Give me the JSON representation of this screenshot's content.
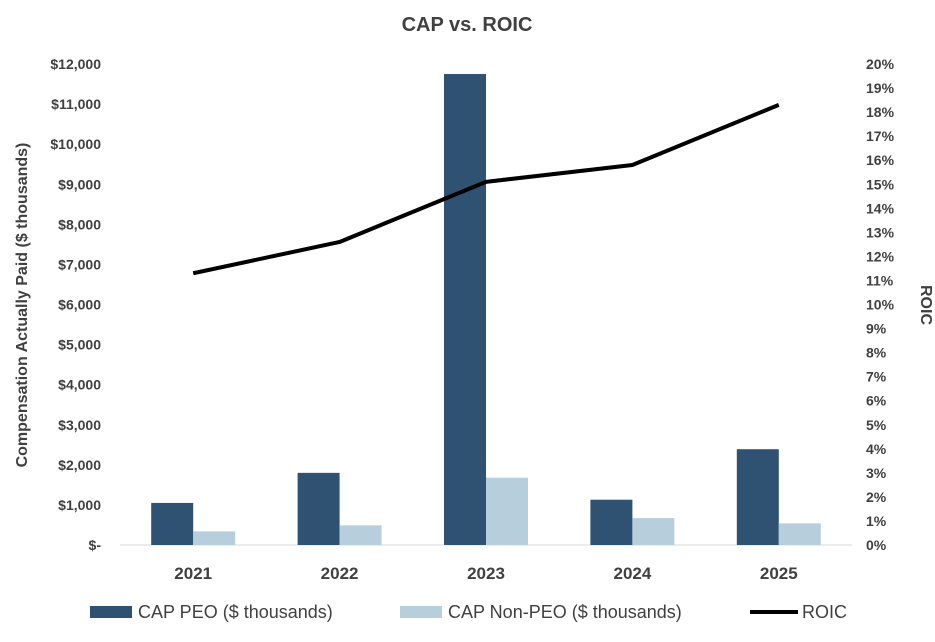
{
  "chart_data": {
    "type": "bar",
    "title": "CAP vs. ROIC",
    "categories": [
      "2021",
      "2022",
      "2023",
      "2024",
      "2025"
    ],
    "series": [
      {
        "name": "CAP PEO ($ thousands)",
        "type": "bar",
        "axis": "left",
        "color": "#2F5272",
        "values": [
          1050,
          1800,
          11750,
          1130,
          2390
        ]
      },
      {
        "name": "CAP Non-PEO ($ thousands)",
        "type": "bar",
        "axis": "left",
        "color": "#B7CFDC",
        "values": [
          340,
          490,
          1680,
          670,
          540
        ]
      },
      {
        "name": "ROIC",
        "type": "line",
        "axis": "right",
        "color": "#000000",
        "values": [
          11.3,
          12.6,
          15.1,
          15.8,
          18.3
        ]
      }
    ],
    "y_left": {
      "label": "Compensation Actually Paid ($ thousands)",
      "range": [
        0,
        12000
      ],
      "ticks": [
        0,
        1000,
        2000,
        3000,
        4000,
        5000,
        6000,
        7000,
        8000,
        9000,
        10000,
        11000,
        12000
      ],
      "tick_labels": [
        "$-",
        "$1,000",
        "$2,000",
        "$3,000",
        "$4,000",
        "$5,000",
        "$6,000",
        "$7,000",
        "$8,000",
        "$9,000",
        "$10,000",
        "$11,000",
        "$12,000"
      ]
    },
    "y_right": {
      "label": "ROIC",
      "range": [
        0,
        20
      ],
      "ticks": [
        0,
        1,
        2,
        3,
        4,
        5,
        6,
        7,
        8,
        9,
        10,
        11,
        12,
        13,
        14,
        15,
        16,
        17,
        18,
        19,
        20
      ],
      "tick_labels": [
        "0%",
        "1%",
        "2%",
        "3%",
        "4%",
        "5%",
        "6%",
        "7%",
        "8%",
        "9%",
        "10%",
        "11%",
        "12%",
        "13%",
        "14%",
        "15%",
        "16%",
        "17%",
        "18%",
        "19%",
        "20%"
      ]
    },
    "grid": false,
    "legend_position": "bottom"
  }
}
